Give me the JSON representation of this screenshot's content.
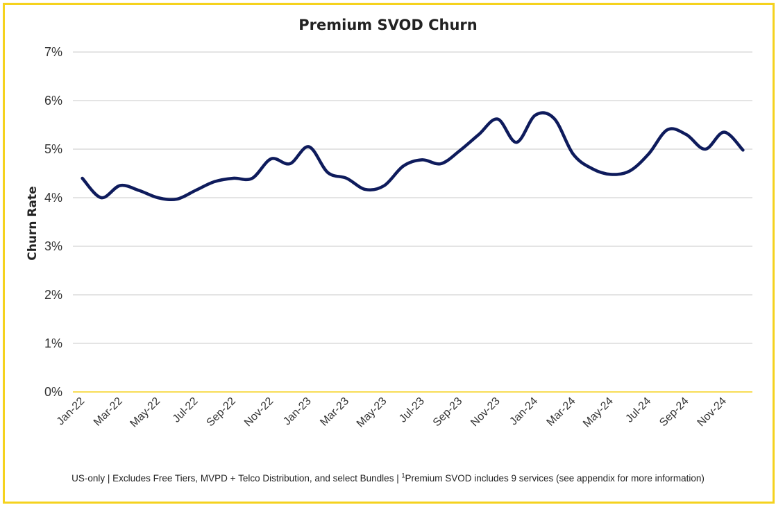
{
  "chart_data": {
    "type": "line",
    "title": "Premium SVOD Churn",
    "xlabel": "",
    "ylabel": "Churn Rate",
    "ylim": [
      0,
      7
    ],
    "yticks": [
      "0%",
      "1%",
      "2%",
      "3%",
      "4%",
      "5%",
      "6%",
      "7%"
    ],
    "x_tick_labels": [
      "Jan-22",
      "Mar-22",
      "May-22",
      "Jul-22",
      "Sep-22",
      "Nov-22",
      "Jan-23",
      "Mar-23",
      "May-23",
      "Jul-23",
      "Sep-23",
      "Nov-23",
      "Jan-24",
      "Mar-24",
      "May-24",
      "Jul-24",
      "Sep-24",
      "Nov-24"
    ],
    "x": [
      "Jan-22",
      "Feb-22",
      "Mar-22",
      "Apr-22",
      "May-22",
      "Jun-22",
      "Jul-22",
      "Aug-22",
      "Sep-22",
      "Oct-22",
      "Nov-22",
      "Dec-22",
      "Jan-23",
      "Feb-23",
      "Mar-23",
      "Apr-23",
      "May-23",
      "Jun-23",
      "Jul-23",
      "Aug-23",
      "Sep-23",
      "Oct-23",
      "Nov-23",
      "Dec-23",
      "Jan-24",
      "Feb-24",
      "Mar-24",
      "Apr-24",
      "May-24",
      "Jun-24",
      "Jul-24",
      "Aug-24",
      "Sep-24",
      "Oct-24",
      "Nov-24",
      "Dec-24"
    ],
    "grid": true,
    "series": [
      {
        "name": "Premium SVOD Churn",
        "color": "#0e1b5c",
        "values": [
          4.4,
          4.0,
          4.25,
          4.15,
          4.0,
          3.97,
          4.15,
          4.33,
          4.4,
          4.4,
          4.8,
          4.7,
          5.05,
          4.52,
          4.4,
          4.17,
          4.25,
          4.65,
          4.78,
          4.7,
          4.97,
          5.3,
          5.62,
          5.14,
          5.7,
          5.63,
          4.9,
          4.6,
          4.48,
          4.55,
          4.9,
          5.4,
          5.3,
          5.0,
          5.35,
          4.98
        ]
      }
    ]
  },
  "footnote": {
    "pre": "US-only | Excludes Free Tiers, MVPD + Telco Distribution, and select Bundles | ",
    "sup": "1",
    "post": "Premium SVOD includes 9 services (see appendix for more information)"
  },
  "colors": {
    "border": "#f5d21e",
    "line": "#0e1b5c",
    "grid": "#c8c8c8",
    "axis": "#f5d21e"
  }
}
